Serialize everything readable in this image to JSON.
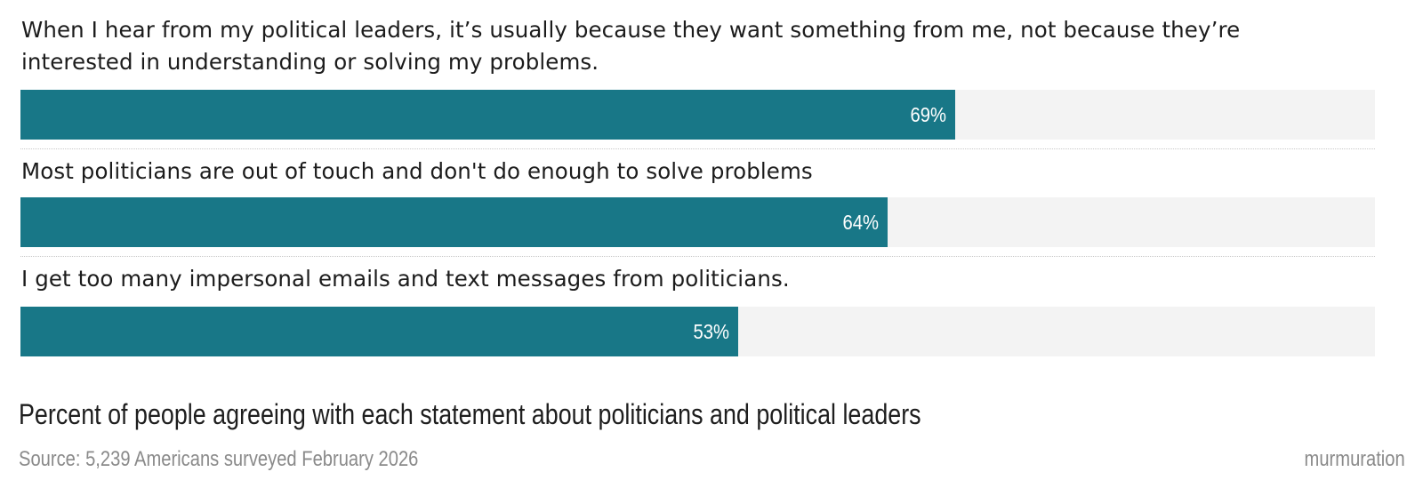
{
  "chart_data": {
    "type": "bar",
    "orientation": "horizontal",
    "categories": [
      "When I hear from my political leaders, it’s usually because they want something from me, not because they’re interested in understanding or solving my problems.",
      "Most politicians are out of touch and don't do enough to solve problems",
      "I get too many impersonal emails and text messages from politicians."
    ],
    "values": [
      69,
      64,
      53
    ],
    "value_labels": [
      "69%",
      "64%",
      "53%"
    ],
    "unit": "%",
    "xlim": [
      0,
      100
    ],
    "title": "Percent of people agreeing with each statement about politicians and political leaders",
    "source": "Source: 5,239 Americans surveyed February 2026",
    "credit": "murmuration",
    "grid": false,
    "legend": "none",
    "colors": {
      "bar": "#187787",
      "track": "#f3f3f3",
      "divider": "#c8c8c8"
    }
  }
}
